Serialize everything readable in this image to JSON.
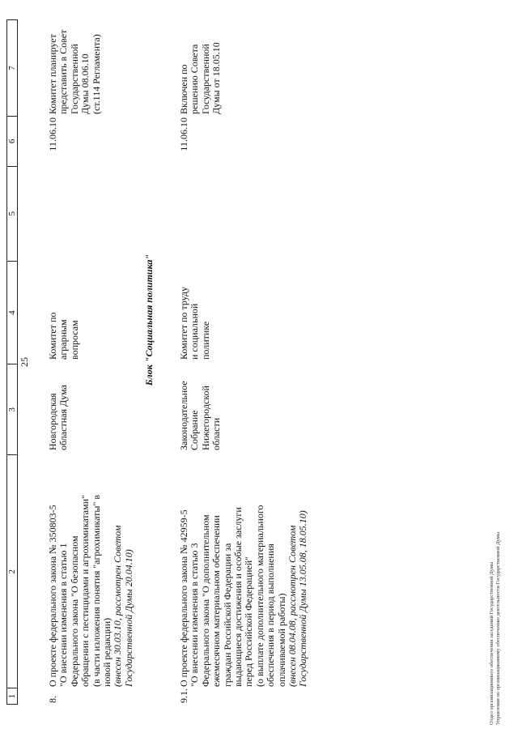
{
  "page_number": "25",
  "table": {
    "header": [
      "1",
      "2",
      "3",
      "4",
      "5",
      "6",
      "7"
    ],
    "rows": [
      {
        "num": "8.",
        "title_lines": [
          "О проекте федерального закона № 350803-5",
          "\"О внесении изменения в статью 1",
          "Федерального закона \"О безопасном",
          "обращении с пестицидами и агрохимикатами\"",
          "(в части изложения понятия \"агрохимикаты\" в",
          "новой редакции)"
        ],
        "note_lines": [
          "(внесен 30.03.10, рассмотрен Советом",
          "Государственной Думы 20.04.10)"
        ],
        "initiator_lines": [
          "Новгородская",
          "областная Дума"
        ],
        "committee_lines": [
          "Комитет по",
          "аграрным",
          "вопросам"
        ],
        "col5": "",
        "date": "11.06.10",
        "status_lines": [
          "Комитет планирует",
          "представить в Совет",
          "Государственной",
          "Думы 08.06.10",
          "(ст.114 Регламента)"
        ]
      },
      {
        "num": "9.1.",
        "title_lines": [
          "О проекте федерального закона № 42959-5",
          "\"О внесении изменения в статью 3",
          "Федерального закона \"О дополнительном",
          "ежемесячном материальном обеспечении",
          "граждан Российской Федерации за",
          "выдающиеся достижения и особые заслуги",
          "перед Российской Федерацией\"",
          "(о выплате дополнительного материального",
          "обеспечения в период выполнения",
          "оплачиваемой работы)"
        ],
        "note_lines": [
          "(внесен 08.04.08, рассмотрен Советом",
          "Государственной Думы 13.05.08, 18.05.10)"
        ],
        "initiator_lines": [
          "Законодательное",
          "Собрание",
          "Нижегородской",
          "области"
        ],
        "committee_lines": [
          "Комитет по труду",
          "и социальной",
          "политике"
        ],
        "col5": "",
        "date": "11.06.10",
        "status_lines": [
          "Включен по",
          "решению Совета",
          "Государственной",
          "Думы от 18.05.10"
        ]
      }
    ],
    "section_title": "Блок \"Социальная политика\""
  },
  "footer": [
    "Отдел организационного обеспечения заседаний Государственной Думы",
    "Управления по организационному обеспечению деятельности Государственной Думы"
  ]
}
